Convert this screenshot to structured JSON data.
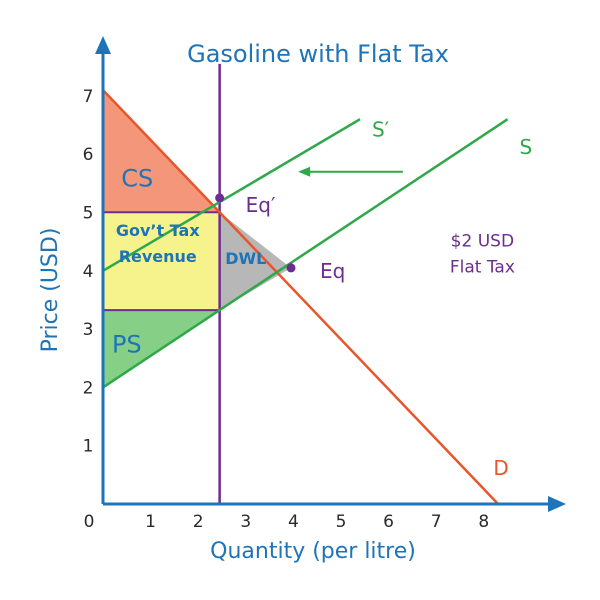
{
  "chart_data": {
    "type": "line",
    "title": "Gasoline with Flat Tax",
    "xlabel": "Quantity (per litre)",
    "ylabel": "Price (USD)",
    "xlim": [
      0,
      9
    ],
    "ylim": [
      0,
      8
    ],
    "x_ticks": [
      "0",
      "1",
      "2",
      "3",
      "4",
      "5",
      "6",
      "7",
      "8"
    ],
    "y_ticks": [
      "1",
      "2",
      "3",
      "4",
      "5",
      "6",
      "7"
    ],
    "series": [
      {
        "name": "D",
        "x": [
          0,
          8.3
        ],
        "y": [
          7.1,
          0
        ],
        "color": "#e8552a"
      },
      {
        "name": "S",
        "x": [
          0,
          8.5
        ],
        "y": [
          2.0,
          6.6
        ],
        "color": "#2ea84a"
      },
      {
        "name": "S′",
        "x": [
          0,
          5.4
        ],
        "y": [
          4.0,
          6.6
        ],
        "color": "#2ea84a"
      }
    ],
    "tax_quantity": 2.45,
    "points": [
      {
        "label": "Eq′",
        "x": 2.45,
        "y": 5.25
      },
      {
        "label": "Eq",
        "x": 3.95,
        "y": 4.05
      }
    ],
    "regions": [
      {
        "label": "CS",
        "color": "#f4967a"
      },
      {
        "label_lines": [
          "Gov’t Tax",
          "Revenue"
        ],
        "color": "#f7f38c"
      },
      {
        "label": "DWL",
        "color": "#b7b7b7"
      },
      {
        "label": "PS",
        "color": "#86cf86"
      }
    ],
    "annotation_lines": [
      "$2 USD",
      "Flat Tax"
    ],
    "shift_arrow": {
      "from": [
        6.3,
        5.7
      ],
      "to": [
        4.1,
        5.7
      ],
      "color": "#2ea84a"
    },
    "colors": {
      "axis": "#1e74b8",
      "tax_line": "#6b2d90"
    }
  }
}
